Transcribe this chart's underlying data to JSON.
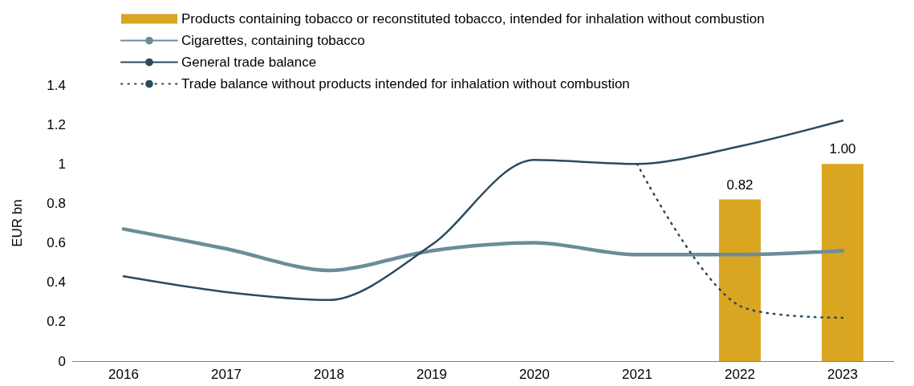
{
  "chart_data": {
    "type": "line",
    "ylabel": "EUR bn",
    "categories": [
      "2016",
      "2017",
      "2018",
      "2019",
      "2020",
      "2021",
      "2022",
      "2023"
    ],
    "series": [
      {
        "type": "bar",
        "name": "Products containing tobacco or reconstituted tobacco, intended for inhalation without combustion",
        "color": "#daa520",
        "values": [
          null,
          null,
          null,
          null,
          null,
          null,
          0.82,
          1.0
        ],
        "value_labels": [
          null,
          null,
          null,
          null,
          null,
          null,
          "0.82",
          "1.00"
        ]
      },
      {
        "name": "Cigarettes, containing tobacco",
        "color": "#6a8d9a",
        "values": [
          0.67,
          0.57,
          0.46,
          0.56,
          0.6,
          0.54,
          0.54,
          0.56
        ]
      },
      {
        "name": "General trade balance",
        "color": "#2b4a5e",
        "values": [
          0.43,
          0.35,
          0.31,
          0.59,
          1.02,
          1.0,
          1.09,
          1.22
        ]
      },
      {
        "name": "Trade balance without products intended for inhalation without combustion",
        "color": "#2b4a5e",
        "line_style": "dotted",
        "values": [
          null,
          null,
          null,
          null,
          null,
          1.0,
          0.28,
          0.22
        ]
      }
    ],
    "ylim": [
      0,
      1.4
    ],
    "yticks": [
      0,
      0.2,
      0.4,
      0.6,
      0.8,
      1,
      1.2,
      1.4
    ],
    "grid": false,
    "legend": "top left",
    "marker": "none"
  }
}
